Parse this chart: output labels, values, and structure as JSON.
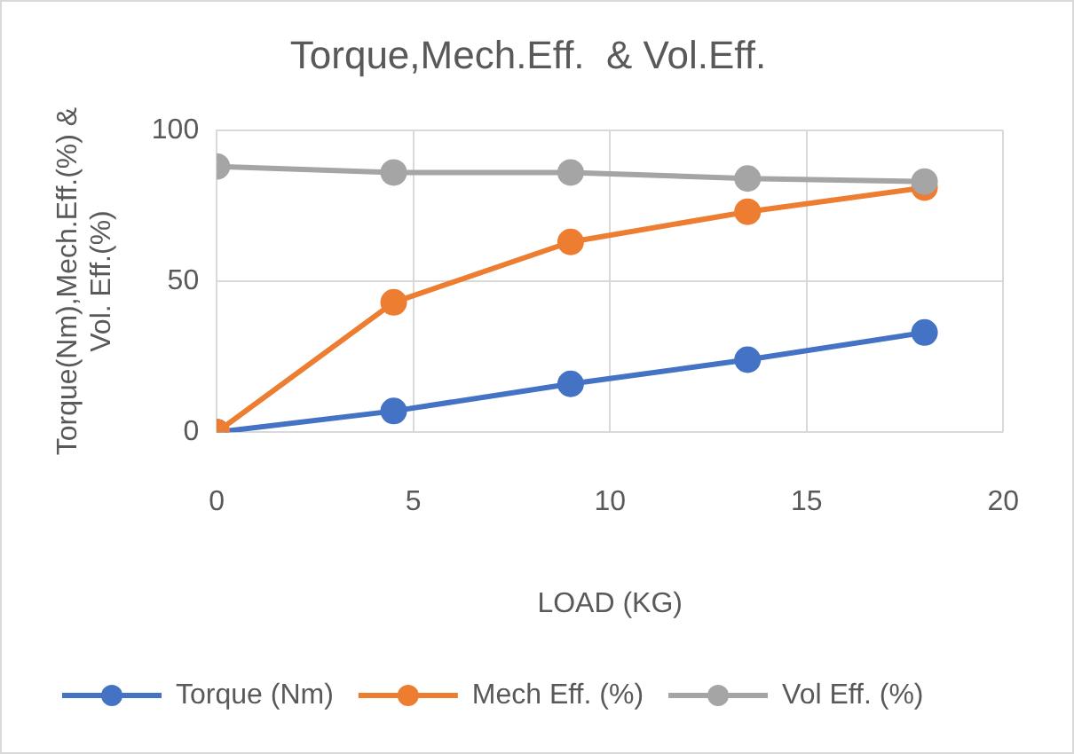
{
  "chart_data": {
    "type": "line",
    "title": "Torque,Mech.Eff.  & Vol.Eff.",
    "xlabel": "LOAD (KG)",
    "ylabel": "Torque(Nm),Mech.Eff.(%) & Vol. Eff.(%)",
    "x": [
      0,
      4.5,
      9,
      13.5,
      18
    ],
    "series": [
      {
        "name": "Torque (Nm)",
        "color": "#4472c4",
        "values": [
          0,
          7,
          16,
          24,
          33
        ]
      },
      {
        "name": "Mech Eff. (%)",
        "color": "#ed7d31",
        "values": [
          0,
          43,
          63,
          73,
          81
        ]
      },
      {
        "name": "Vol Eff. (%)",
        "color": "#a5a5a5",
        "values": [
          88,
          86,
          86,
          84,
          83
        ]
      }
    ],
    "xlim": [
      0,
      20
    ],
    "xticks": [
      0,
      5,
      10,
      15,
      20
    ],
    "ylim": [
      0,
      100
    ],
    "yticks": [
      0,
      50,
      100
    ],
    "grid": true,
    "legend": "bottom",
    "marker": "circle",
    "line_style": "solid"
  }
}
